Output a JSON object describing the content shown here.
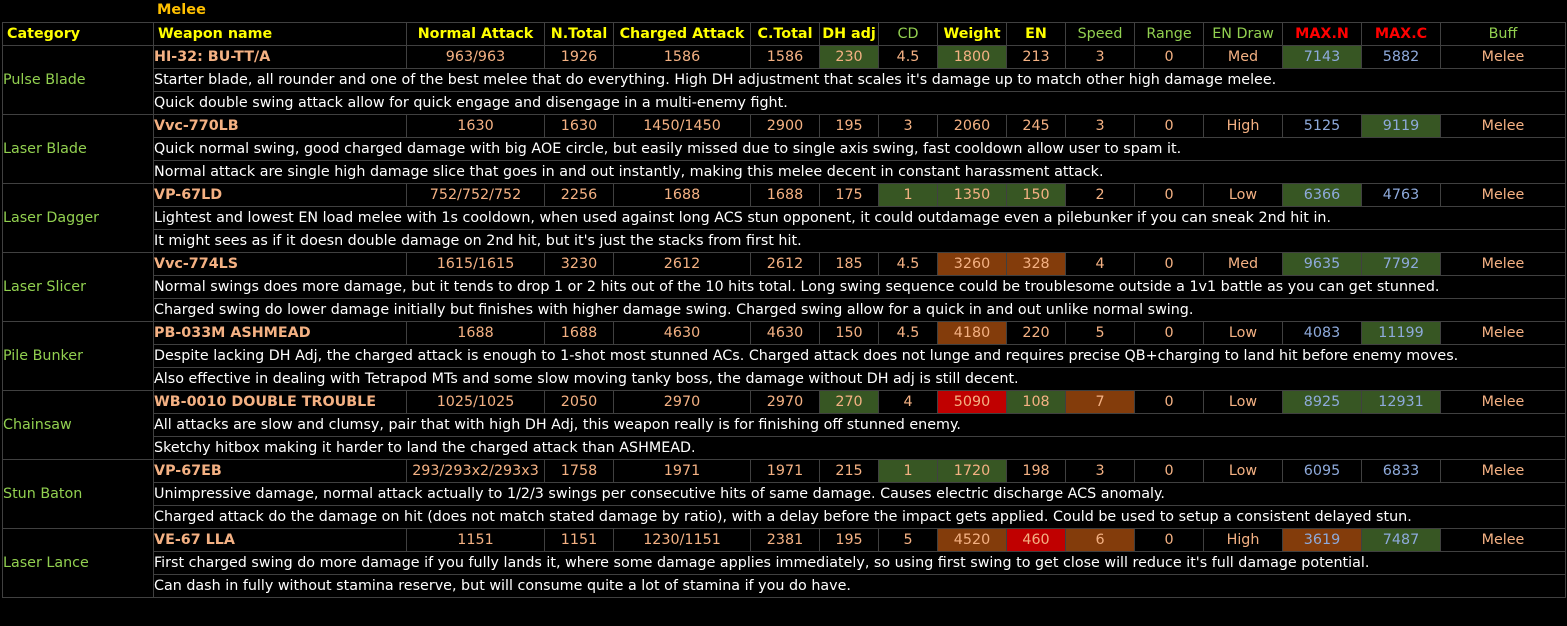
{
  "sheet": {
    "title": "Melee"
  },
  "headers": [
    "Category",
    "Weapon name",
    "Normal Attack",
    "N.Total",
    "Charged Attack",
    "C.Total",
    "DH adj",
    "CD",
    "Weight",
    "EN",
    "Speed",
    "Range",
    "EN Draw",
    "MAX.N",
    "MAX.C",
    "Buff"
  ],
  "header_styles": [
    "hdr left",
    "hdr left",
    "hdr",
    "hdr",
    "hdr",
    "hdr",
    "hdr",
    "hdr grn",
    "hdr",
    "hdr",
    "hdr grn",
    "hdr grn",
    "hdr grn",
    "hdr red",
    "hdr red",
    "hdr grn"
  ],
  "highlight_colors": {
    "green": "#375623",
    "orange": "#833c0b",
    "red": "#c00000"
  },
  "weapons": [
    {
      "category": "Pulse Blade",
      "name": "HI-32: BU-TT/A",
      "stats": [
        "963/963",
        "1926",
        "1586",
        "1586",
        "230",
        "4.5",
        "1800",
        "213",
        "3",
        "0",
        "Med",
        "7143",
        "5882",
        "Melee"
      ],
      "highlights": [
        "",
        "",
        "",
        "",
        "green",
        "",
        "green",
        "",
        "",
        "",
        "",
        "green",
        "",
        ""
      ],
      "notes": [
        "Starter blade, all rounder and one of the best melee that do everything. High DH adjustment that scales it's damage up to match other high damage melee.",
        "Quick double swing attack allow for quick engage and disengage in a multi-enemy fight."
      ]
    },
    {
      "category": "Laser Blade",
      "name": "Vvc-770LB",
      "stats": [
        "1630",
        "1630",
        "1450/1450",
        "2900",
        "195",
        "3",
        "2060",
        "245",
        "3",
        "0",
        "High",
        "5125",
        "9119",
        "Melee"
      ],
      "highlights": [
        "",
        "",
        "",
        "",
        "",
        "",
        "",
        "",
        "",
        "",
        "",
        "",
        "green",
        ""
      ],
      "notes": [
        "Quick normal swing, good charged damage with big AOE circle, but easily missed due to single axis swing, fast cooldown allow user to spam it.",
        "Normal attack are single high damage slice that goes in and out instantly, making this melee decent in constant harassment attack."
      ]
    },
    {
      "category": "Laser Dagger",
      "name": "VP-67LD",
      "stats": [
        "752/752/752",
        "2256",
        "1688",
        "1688",
        "175",
        "1",
        "1350",
        "150",
        "2",
        "0",
        "Low",
        "6366",
        "4763",
        "Melee"
      ],
      "highlights": [
        "",
        "",
        "",
        "",
        "",
        "green",
        "green",
        "green",
        "",
        "",
        "",
        "green",
        "",
        ""
      ],
      "notes": [
        "Lightest and lowest EN load melee with 1s cooldown, when used against long ACS stun opponent, it could outdamage even a pilebunker if you can sneak 2nd hit in.",
        "It might sees as if it doesn double damage on 2nd hit, but it's just the stacks from first hit."
      ]
    },
    {
      "category": "Laser Slicer",
      "name": "Vvc-774LS",
      "stats": [
        "1615/1615",
        "3230",
        "2612",
        "2612",
        "185",
        "4.5",
        "3260",
        "328",
        "4",
        "0",
        "Med",
        "9635",
        "7792",
        "Melee"
      ],
      "highlights": [
        "",
        "",
        "",
        "",
        "",
        "",
        "orange",
        "orange",
        "",
        "",
        "",
        "green",
        "green",
        ""
      ],
      "notes": [
        "Normal swings does more damage, but it tends to drop 1 or 2 hits out of the 10 hits total. Long swing sequence could be troublesome outside a 1v1 battle as you can get stunned.",
        "Charged swing do lower damage initially but finishes with higher damage swing. Charged swing allow for a quick in and out unlike normal swing."
      ]
    },
    {
      "category": "Pile Bunker",
      "name": "PB-033M ASHMEAD",
      "stats": [
        "1688",
        "1688",
        "4630",
        "4630",
        "150",
        "4.5",
        "4180",
        "220",
        "5",
        "0",
        "Low",
        "4083",
        "11199",
        "Melee"
      ],
      "highlights": [
        "",
        "",
        "",
        "",
        "",
        "",
        "orange",
        "",
        "",
        "",
        "",
        "",
        "green",
        ""
      ],
      "notes": [
        "Despite lacking DH Adj, the charged attack is enough to 1-shot most stunned ACs. Charged attack does not lunge and requires precise QB+charging to land hit before enemy moves.",
        "Also effective in dealing with Tetrapod MTs and some slow moving tanky boss, the damage without DH adj is still decent."
      ]
    },
    {
      "category": "Chainsaw",
      "name": "WB-0010 DOUBLE TROUBLE",
      "stats": [
        "1025/1025",
        "2050",
        "2970",
        "2970",
        "270",
        "4",
        "5090",
        "108",
        "7",
        "0",
        "Low",
        "8925",
        "12931",
        "Melee"
      ],
      "highlights": [
        "",
        "",
        "",
        "",
        "green",
        "",
        "red",
        "green",
        "orange",
        "",
        "",
        "green",
        "green",
        ""
      ],
      "notes": [
        "All attacks are slow and clumsy, pair that with high DH Adj, this weapon really is for finishing off stunned enemy.",
        "Sketchy hitbox making it harder to land the charged attack than ASHMEAD."
      ]
    },
    {
      "category": "Stun Baton",
      "name": "VP-67EB",
      "stats": [
        "293/293x2/293x3",
        "1758",
        "1971",
        "1971",
        "215",
        "1",
        "1720",
        "198",
        "3",
        "0",
        "Low",
        "6095",
        "6833",
        "Melee"
      ],
      "highlights": [
        "",
        "",
        "",
        "",
        "",
        "green",
        "green",
        "",
        "",
        "",
        "",
        "",
        "",
        ""
      ],
      "notes": [
        "Unimpressive damage, normal attack actually to 1/2/3 swings per consecutive hits of same damage. Causes electric discharge ACS anomaly.",
        "Charged attack do the damage on hit (does not match stated damage by ratio), with a delay before the impact gets applied. Could be used to setup a consistent delayed stun."
      ]
    },
    {
      "category": "Laser Lance",
      "name": "VE-67 LLA",
      "stats": [
        "1151",
        "1151",
        "1230/1151",
        "2381",
        "195",
        "5",
        "4520",
        "460",
        "6",
        "0",
        "High",
        "3619",
        "7487",
        "Melee"
      ],
      "highlights": [
        "",
        "",
        "",
        "",
        "",
        "",
        "orange",
        "red",
        "orange",
        "",
        "",
        "orange",
        "green",
        ""
      ],
      "notes": [
        "First charged swing do more damage if you fully lands it, where some damage applies immediately, so using first swing to get close will reduce it's full damage potential.",
        "Can dash in fully without stamina reserve, but will consume quite a lot of stamina if you do have."
      ]
    }
  ]
}
